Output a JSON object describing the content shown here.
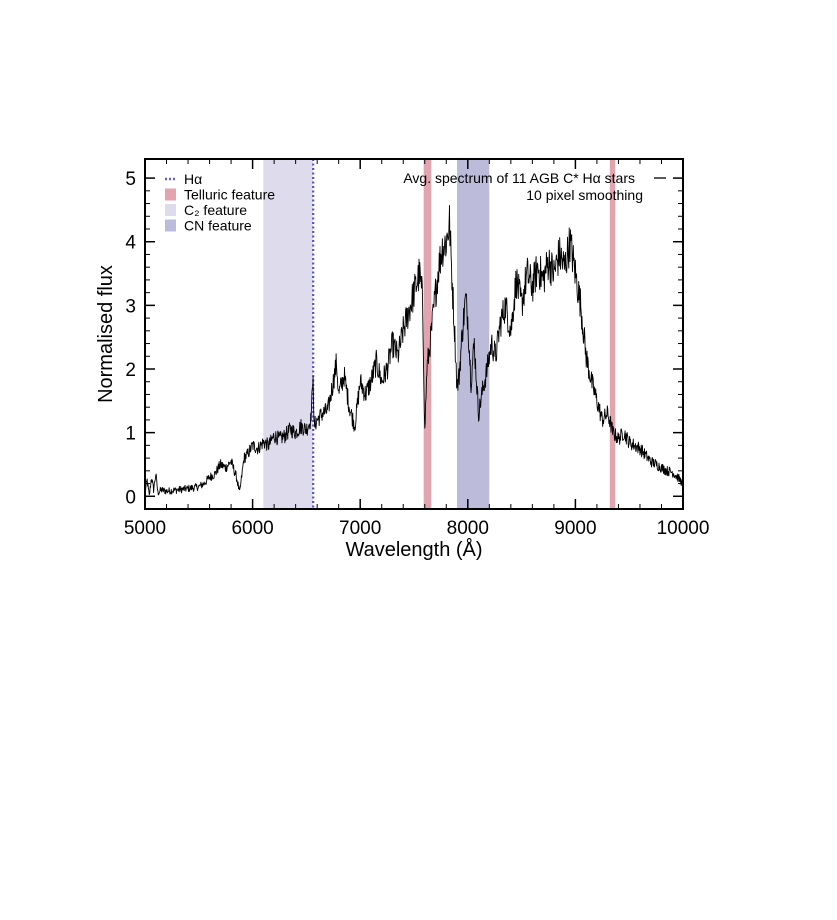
{
  "chart_data": {
    "type": "line",
    "xlabel": "Wavelength (Å)",
    "ylabel": "Normalised flux",
    "xlim": [
      5000,
      10000
    ],
    "ylim": [
      -0.2,
      5.3
    ],
    "x_ticks": [
      5000,
      6000,
      7000,
      8000,
      9000,
      10000
    ],
    "y_ticks": [
      0,
      1,
      2,
      3,
      4,
      5
    ],
    "grid": false,
    "legend_position": "top-left",
    "annotation_lines": [
      "Avg. spectrum of 11 AGB C* Hα stars",
      "10 pixel smoothing"
    ],
    "legend": [
      {
        "label": "Hα",
        "kind": "dotted-line",
        "color": "#6a5acd"
      },
      {
        "label": "Telluric feature",
        "kind": "band",
        "color": "#e3a4b0"
      },
      {
        "label": "C₂ feature",
        "kind": "band",
        "color": "#dedcec"
      },
      {
        "label": "CN feature",
        "kind": "band",
        "color": "#bcbcda"
      }
    ],
    "bands": [
      {
        "name": "C₂ feature",
        "x0": 6100,
        "x1": 6560,
        "color": "#dedcec"
      },
      {
        "name": "Telluric feature",
        "x0": 7590,
        "x1": 7660,
        "color": "#e3a4b0"
      },
      {
        "name": "CN feature",
        "x0": 7900,
        "x1": 8200,
        "color": "#bcbcda"
      },
      {
        "name": "Telluric feature",
        "x0": 9320,
        "x1": 9370,
        "color": "#e3a4b0"
      }
    ],
    "vlines": [
      {
        "name": "Hα",
        "x": 6563,
        "color": "#5a4fcf",
        "style": "dotted"
      }
    ],
    "series": [
      {
        "color": "#000000",
        "points": [
          [
            5000,
            0.05
          ],
          [
            5020,
            0.25
          ],
          [
            5040,
            0.0
          ],
          [
            5060,
            0.3
          ],
          [
            5080,
            0.1
          ],
          [
            5100,
            0.35
          ],
          [
            5120,
            0.05
          ],
          [
            5150,
            0.1
          ],
          [
            5200,
            0.08
          ],
          [
            5300,
            0.1
          ],
          [
            5400,
            0.12
          ],
          [
            5500,
            0.15
          ],
          [
            5550,
            0.2
          ],
          [
            5600,
            0.3
          ],
          [
            5650,
            0.35
          ],
          [
            5700,
            0.5
          ],
          [
            5750,
            0.45
          ],
          [
            5800,
            0.55
          ],
          [
            5850,
            0.3
          ],
          [
            5880,
            0.05
          ],
          [
            5920,
            0.6
          ],
          [
            5950,
            0.65
          ],
          [
            6000,
            0.8
          ],
          [
            6050,
            0.75
          ],
          [
            6100,
            0.85
          ],
          [
            6150,
            0.8
          ],
          [
            6200,
            0.95
          ],
          [
            6250,
            0.9
          ],
          [
            6300,
            0.95
          ],
          [
            6350,
            1.05
          ],
          [
            6400,
            1.0
          ],
          [
            6450,
            1.1
          ],
          [
            6500,
            1.05
          ],
          [
            6540,
            1.2
          ],
          [
            6555,
            1.6
          ],
          [
            6562,
            2.05
          ],
          [
            6570,
            1.1
          ],
          [
            6600,
            1.2
          ],
          [
            6650,
            1.3
          ],
          [
            6700,
            1.35
          ],
          [
            6750,
            1.8
          ],
          [
            6780,
            2.1
          ],
          [
            6800,
            1.6
          ],
          [
            6850,
            1.9
          ],
          [
            6900,
            1.4
          ],
          [
            6950,
            1.1
          ],
          [
            7000,
            1.8
          ],
          [
            7050,
            1.6
          ],
          [
            7100,
            1.8
          ],
          [
            7150,
            2.1
          ],
          [
            7200,
            1.8
          ],
          [
            7250,
            2.0
          ],
          [
            7300,
            2.4
          ],
          [
            7350,
            2.2
          ],
          [
            7400,
            2.6
          ],
          [
            7450,
            2.9
          ],
          [
            7500,
            3.2
          ],
          [
            7550,
            3.5
          ],
          [
            7580,
            3.1
          ],
          [
            7600,
            1.0
          ],
          [
            7620,
            2.0
          ],
          [
            7650,
            2.4
          ],
          [
            7700,
            3.2
          ],
          [
            7730,
            3.6
          ],
          [
            7760,
            3.9
          ],
          [
            7800,
            4.0
          ],
          [
            7830,
            4.3
          ],
          [
            7860,
            3.2
          ],
          [
            7880,
            2.5
          ],
          [
            7900,
            1.7
          ],
          [
            7920,
            1.9
          ],
          [
            7950,
            2.6
          ],
          [
            7980,
            3.1
          ],
          [
            8000,
            2.8
          ],
          [
            8030,
            1.8
          ],
          [
            8060,
            2.4
          ],
          [
            8100,
            1.3
          ],
          [
            8130,
            1.6
          ],
          [
            8180,
            2.0
          ],
          [
            8220,
            2.4
          ],
          [
            8260,
            2.2
          ],
          [
            8300,
            2.7
          ],
          [
            8350,
            3.0
          ],
          [
            8400,
            2.6
          ],
          [
            8450,
            3.4
          ],
          [
            8500,
            3.0
          ],
          [
            8550,
            3.5
          ],
          [
            8600,
            3.3
          ],
          [
            8650,
            3.6
          ],
          [
            8700,
            3.4
          ],
          [
            8750,
            3.7
          ],
          [
            8800,
            3.5
          ],
          [
            8850,
            3.8
          ],
          [
            8900,
            3.6
          ],
          [
            8950,
            4.0
          ],
          [
            9000,
            3.5
          ],
          [
            9050,
            3.0
          ],
          [
            9100,
            2.2
          ],
          [
            9150,
            1.8
          ],
          [
            9200,
            1.5
          ],
          [
            9250,
            1.2
          ],
          [
            9300,
            1.3
          ],
          [
            9350,
            1.0
          ],
          [
            9400,
            0.9
          ],
          [
            9450,
            1.0
          ],
          [
            9500,
            0.85
          ],
          [
            9550,
            0.8
          ],
          [
            9600,
            0.75
          ],
          [
            9650,
            0.65
          ],
          [
            9700,
            0.55
          ],
          [
            9750,
            0.5
          ],
          [
            9800,
            0.45
          ],
          [
            9850,
            0.4
          ],
          [
            9900,
            0.38
          ],
          [
            9950,
            0.3
          ],
          [
            10000,
            0.2
          ]
        ]
      }
    ]
  }
}
